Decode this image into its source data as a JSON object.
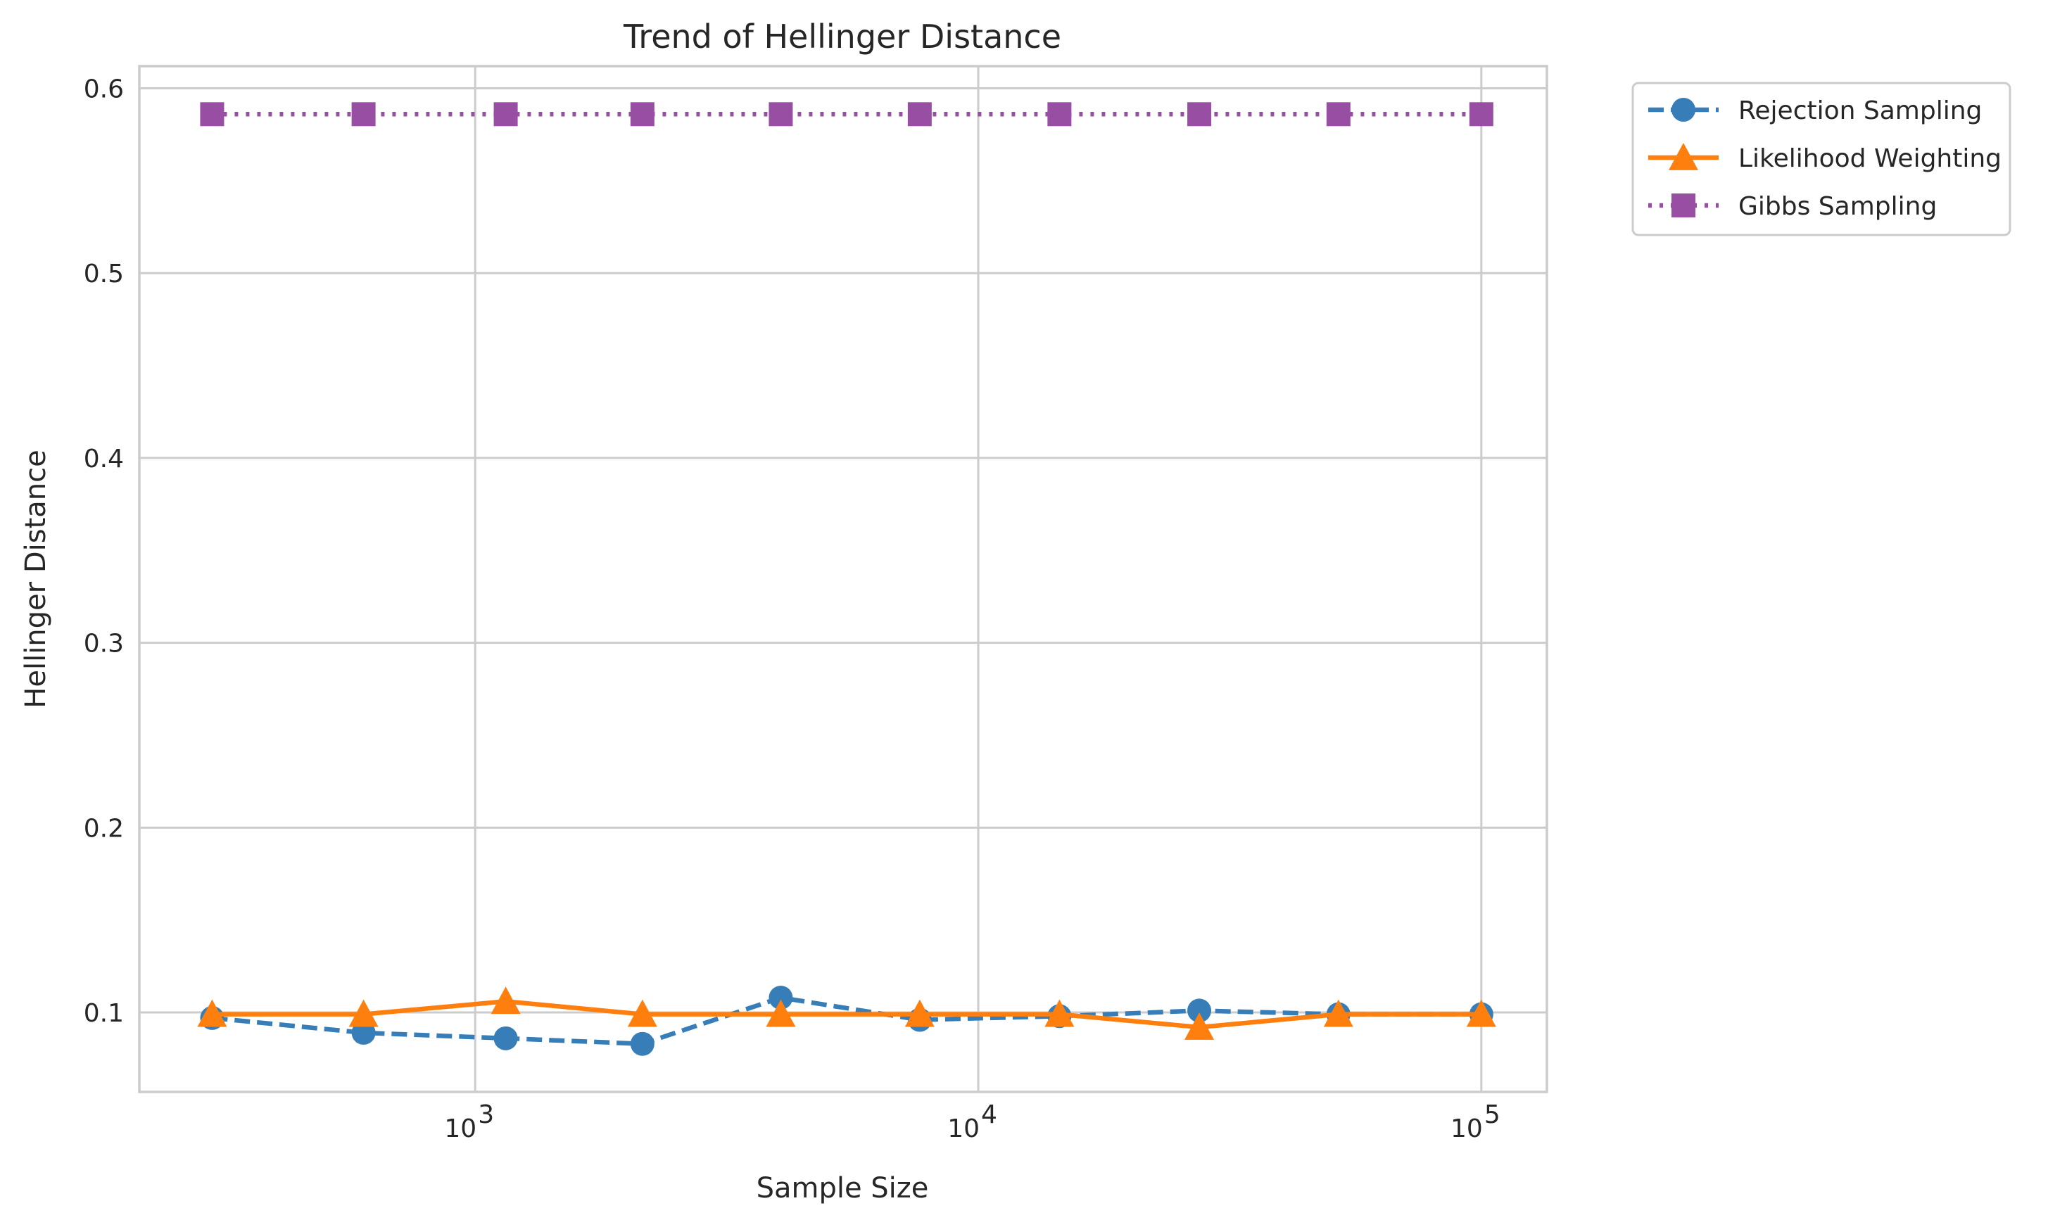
{
  "chart_data": {
    "type": "line",
    "title": "Trend of Hellinger Distance",
    "xlabel": "Sample Size",
    "ylabel": "Hellinger Distance",
    "xscale": "log",
    "xlim": [
      215,
      135000
    ],
    "ylim": [
      0.057,
      0.612
    ],
    "x": [
      300,
      600,
      1150,
      2150,
      4050,
      7650,
      14500,
      27500,
      52000,
      100000
    ],
    "xticks": [
      {
        "value": 1000,
        "base": "10",
        "exp": "3"
      },
      {
        "value": 10000,
        "base": "10",
        "exp": "4"
      },
      {
        "value": 100000,
        "base": "10",
        "exp": "5"
      }
    ],
    "yticks": [
      {
        "value": 0.1,
        "label": "0.1"
      },
      {
        "value": 0.2,
        "label": "0.2"
      },
      {
        "value": 0.3,
        "label": "0.3"
      },
      {
        "value": 0.4,
        "label": "0.4"
      },
      {
        "value": 0.5,
        "label": "0.5"
      },
      {
        "value": 0.6,
        "label": "0.6"
      }
    ],
    "grid": true,
    "legend_position": "outside-top-right",
    "series": [
      {
        "name": "Rejection Sampling",
        "color": "#377eb8",
        "marker": "circle",
        "linestyle": "dashed",
        "values": [
          0.097,
          0.089,
          0.086,
          0.083,
          0.108,
          0.096,
          0.098,
          0.101,
          0.099,
          0.099
        ]
      },
      {
        "name": "Likelihood Weighting",
        "color": "#ff7f0e",
        "marker": "triangle",
        "linestyle": "solid",
        "values": [
          0.099,
          0.099,
          0.106,
          0.099,
          0.099,
          0.099,
          0.099,
          0.092,
          0.099,
          0.099
        ]
      },
      {
        "name": "Gibbs Sampling",
        "color": "#984ea3",
        "marker": "square",
        "linestyle": "dotted",
        "values": [
          0.586,
          0.586,
          0.586,
          0.586,
          0.586,
          0.586,
          0.586,
          0.586,
          0.586,
          0.586
        ]
      }
    ]
  }
}
